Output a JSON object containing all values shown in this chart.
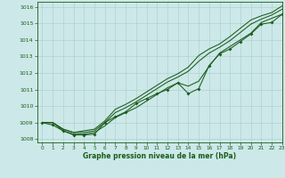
{
  "xlabel": "Graphe pression niveau de la mer (hPa)",
  "xlim": [
    -0.5,
    23
  ],
  "ylim": [
    1007.8,
    1016.3
  ],
  "yticks": [
    1008,
    1009,
    1010,
    1011,
    1012,
    1013,
    1014,
    1015,
    1016
  ],
  "xticks": [
    0,
    1,
    2,
    3,
    4,
    5,
    6,
    7,
    8,
    9,
    10,
    11,
    12,
    13,
    14,
    15,
    16,
    17,
    18,
    19,
    20,
    21,
    22,
    23
  ],
  "bg_color": "#cce8e8",
  "grid_color": "#aacccc",
  "line_color": "#1a5c1a",
  "line1": [
    1009.0,
    1009.0,
    1008.5,
    1008.3,
    1008.3,
    1008.4,
    1008.8,
    1009.3,
    1009.6,
    1009.9,
    1010.3,
    1010.7,
    1011.1,
    1011.4,
    1011.2,
    1011.5,
    1012.4,
    1013.2,
    1013.6,
    1014.0,
    1014.4,
    1015.05,
    1015.3,
    1015.55
  ],
  "line2": [
    1009.0,
    1009.0,
    1008.6,
    1008.4,
    1008.4,
    1008.5,
    1009.0,
    1009.6,
    1009.9,
    1010.25,
    1010.65,
    1011.05,
    1011.45,
    1011.75,
    1012.1,
    1012.7,
    1013.2,
    1013.55,
    1013.95,
    1014.45,
    1014.95,
    1015.25,
    1015.5,
    1015.85
  ],
  "line3": [
    1009.0,
    1009.0,
    1008.6,
    1008.4,
    1008.5,
    1008.6,
    1009.1,
    1009.8,
    1010.1,
    1010.45,
    1010.85,
    1011.25,
    1011.65,
    1011.95,
    1012.35,
    1013.05,
    1013.45,
    1013.75,
    1014.2,
    1014.7,
    1015.2,
    1015.45,
    1015.65,
    1016.05
  ],
  "line4": [
    1009.0,
    1008.85,
    1008.5,
    1008.25,
    1008.25,
    1008.3,
    1009.0,
    1009.35,
    1009.65,
    1010.15,
    1010.45,
    1010.75,
    1011.0,
    1011.4,
    1010.75,
    1011.05,
    1012.45,
    1013.15,
    1013.45,
    1013.9,
    1014.35,
    1014.95,
    1015.05,
    1015.55
  ]
}
